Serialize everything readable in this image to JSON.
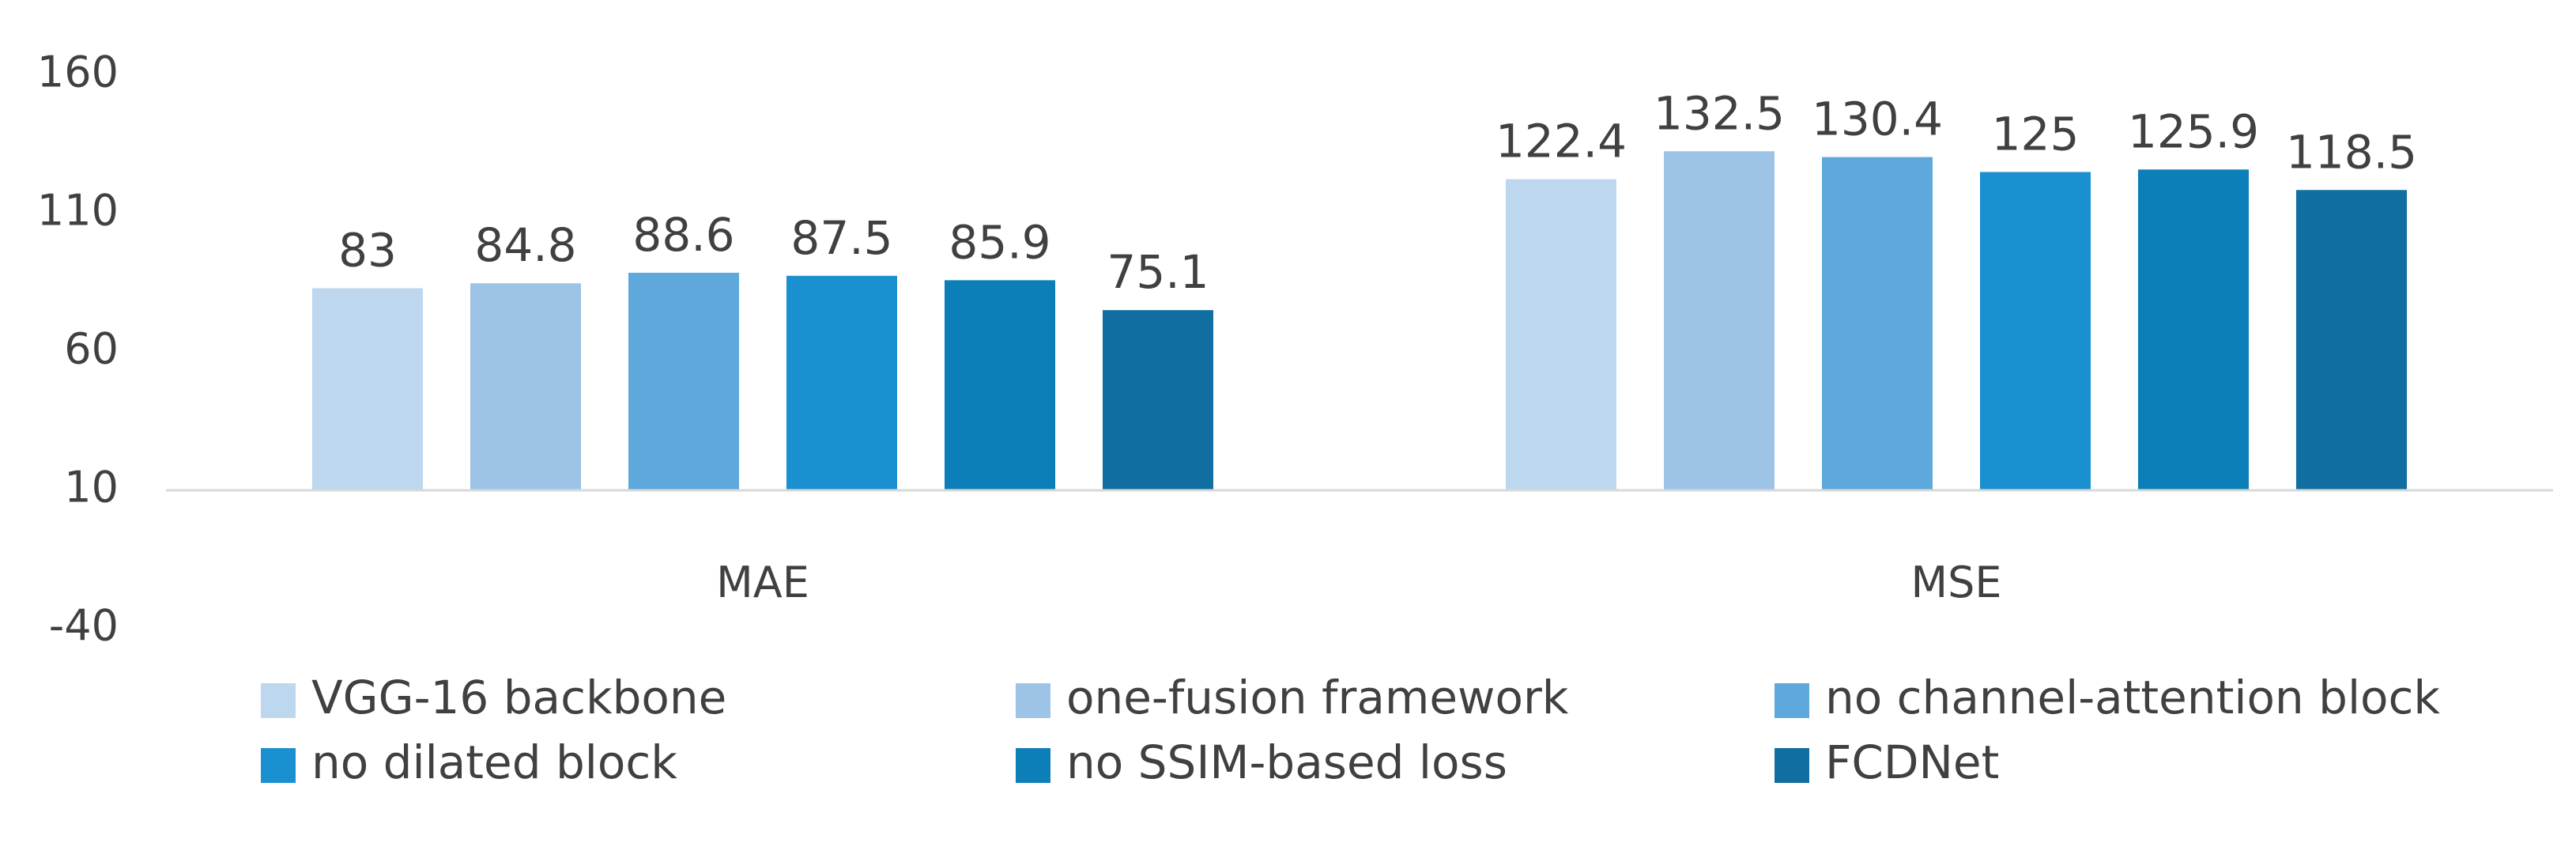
{
  "chart_data": {
    "type": "bar",
    "title": "",
    "xlabel": "",
    "ylabel": "",
    "categories": [
      "MAE",
      "MSE"
    ],
    "ylim": [
      -40,
      160
    ],
    "baseline": 10,
    "yticks": [
      "160",
      "110",
      "60",
      "10",
      "-40"
    ],
    "ytick_values": [
      160,
      110,
      60,
      10,
      -40
    ],
    "grid": false,
    "legend": "bottom",
    "series": [
      {
        "name": "VGG-16 backbone",
        "color": "#bdd7ee",
        "values": [
          83,
          122.4
        ],
        "labels": [
          "83",
          "122.4"
        ]
      },
      {
        "name": "one-fusion framework",
        "color": "#9dc3e6",
        "values": [
          84.8,
          132.5
        ],
        "labels": [
          "84.8",
          "132.5"
        ]
      },
      {
        "name": "no channel-attention block",
        "color": "#5ea8dc",
        "values": [
          88.6,
          130.4
        ],
        "labels": [
          "88.6",
          "130.4"
        ]
      },
      {
        "name": "no dilated block",
        "color": "#1a90d0",
        "values": [
          87.5,
          125
        ],
        "labels": [
          "87.5",
          "125"
        ]
      },
      {
        "name": "no SSIM-based loss",
        "color": "#0d7fb8",
        "values": [
          85.9,
          125.9
        ],
        "labels": [
          "85.9",
          "125.9"
        ]
      },
      {
        "name": "FCDNet",
        "color": "#106ea0",
        "values": [
          75.1,
          118.5
        ],
        "labels": [
          "75.1",
          "118.5"
        ]
      }
    ]
  }
}
